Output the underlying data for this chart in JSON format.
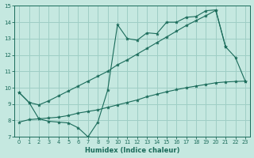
{
  "xlabel": "Humidex (Indice chaleur)",
  "xlim": [
    -0.5,
    23.5
  ],
  "ylim": [
    7,
    15
  ],
  "yticks": [
    7,
    8,
    9,
    10,
    11,
    12,
    13,
    14,
    15
  ],
  "xticks": [
    0,
    1,
    2,
    3,
    4,
    5,
    6,
    7,
    8,
    9,
    10,
    11,
    12,
    13,
    14,
    15,
    16,
    17,
    18,
    19,
    20,
    21,
    22,
    23
  ],
  "bg_color": "#c5e8e0",
  "grid_color": "#9ecec5",
  "line_color": "#1a6b5a",
  "line1_x": [
    0,
    1,
    2,
    3,
    4,
    5,
    6,
    7,
    8,
    9,
    10,
    11,
    12,
    13,
    14,
    15,
    16,
    17,
    18,
    19,
    20,
    21,
    22,
    23
  ],
  "line1_y": [
    9.7,
    9.1,
    8.1,
    7.95,
    7.9,
    7.85,
    7.55,
    7.0,
    7.9,
    9.85,
    13.85,
    13.0,
    12.9,
    13.35,
    13.3,
    14.0,
    14.0,
    14.3,
    14.35,
    14.7,
    14.75,
    12.5,
    11.85,
    10.4
  ],
  "line2_x": [
    0,
    1,
    2,
    3,
    4,
    5,
    6,
    7,
    8,
    9,
    10,
    11,
    12,
    13,
    14,
    15,
    16,
    17,
    18,
    19,
    20,
    21
  ],
  "line2_y": [
    9.7,
    9.1,
    8.95,
    9.2,
    9.5,
    9.8,
    10.1,
    10.4,
    10.7,
    11.0,
    11.4,
    11.7,
    12.05,
    12.4,
    12.75,
    13.1,
    13.45,
    13.8,
    14.1,
    14.4,
    14.72,
    12.5
  ],
  "line3_x": [
    0,
    1,
    2,
    3,
    4,
    5,
    6,
    7,
    8,
    9,
    10,
    11,
    12,
    13,
    14,
    15,
    16,
    17,
    18,
    19,
    20,
    21,
    22,
    23
  ],
  "line3_y": [
    7.9,
    8.05,
    8.1,
    8.15,
    8.2,
    8.3,
    8.45,
    8.55,
    8.65,
    8.8,
    8.95,
    9.1,
    9.25,
    9.45,
    9.6,
    9.75,
    9.88,
    10.0,
    10.1,
    10.2,
    10.3,
    10.35,
    10.38,
    10.4
  ]
}
